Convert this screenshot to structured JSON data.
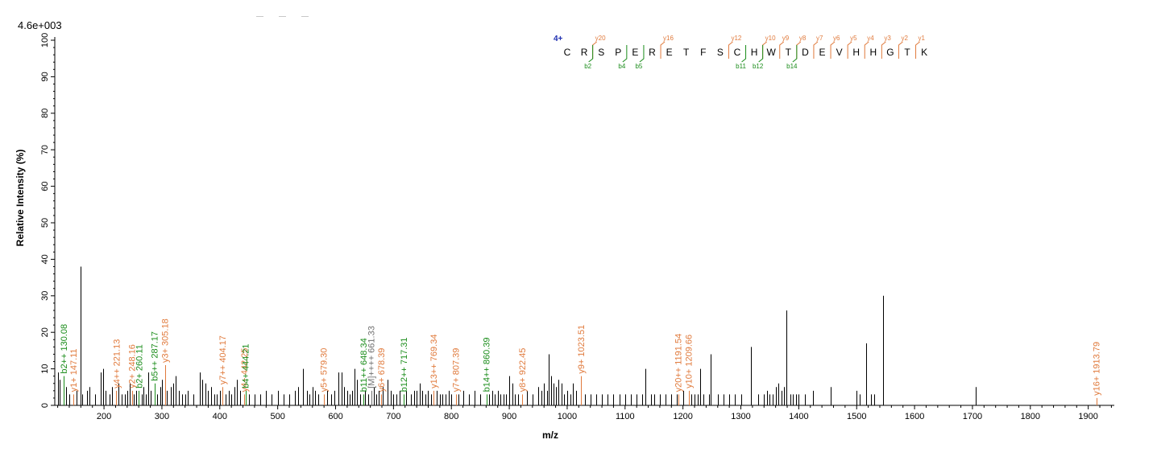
{
  "chart_data": {
    "type": "bar",
    "scale_label": "4.6e+003",
    "xlabel": "m/z",
    "ylabel": "Relative  Intensity (%)",
    "xlim": [
      115,
      1945
    ],
    "ylim": [
      0,
      100
    ],
    "x_ticks": [
      200,
      300,
      400,
      500,
      600,
      700,
      800,
      900,
      1000,
      1100,
      1200,
      1300,
      1400,
      1500,
      1600,
      1700,
      1800,
      1900
    ],
    "y_ticks": [
      0,
      10,
      20,
      30,
      40,
      50,
      60,
      70,
      80,
      90,
      100
    ],
    "colors": {
      "y_ion": "#e07a3c",
      "b_ion": "#1a8c1a",
      "precursor": "#707070",
      "peak": "#000000",
      "charge": "#1f2fb0"
    },
    "peaks": [
      [
        120,
        9
      ],
      [
        124,
        7
      ],
      [
        130.08,
        8
      ],
      [
        135,
        5
      ],
      [
        140,
        3
      ],
      [
        147.11,
        3
      ],
      [
        152,
        4
      ],
      [
        159,
        38
      ],
      [
        163,
        3
      ],
      [
        170,
        4
      ],
      [
        175,
        5
      ],
      [
        185,
        3
      ],
      [
        195,
        9
      ],
      [
        199,
        10
      ],
      [
        203,
        4
      ],
      [
        210,
        3
      ],
      [
        214,
        5
      ],
      [
        221.13,
        4
      ],
      [
        225,
        6
      ],
      [
        230,
        3
      ],
      [
        236,
        3
      ],
      [
        240,
        4
      ],
      [
        244,
        6
      ],
      [
        248.16,
        4
      ],
      [
        252,
        3
      ],
      [
        256,
        4
      ],
      [
        260.11,
        4
      ],
      [
        265,
        3
      ],
      [
        268,
        5
      ],
      [
        272,
        3
      ],
      [
        276,
        9
      ],
      [
        280,
        4
      ],
      [
        287.17,
        6
      ],
      [
        292,
        3
      ],
      [
        297,
        5
      ],
      [
        300,
        7
      ],
      [
        305.18,
        11
      ],
      [
        309,
        4
      ],
      [
        315,
        5
      ],
      [
        320,
        6
      ],
      [
        324,
        8
      ],
      [
        330,
        4
      ],
      [
        335,
        3
      ],
      [
        340,
        3
      ],
      [
        345,
        4
      ],
      [
        355,
        3
      ],
      [
        365,
        9
      ],
      [
        370,
        7
      ],
      [
        375,
        6
      ],
      [
        380,
        4
      ],
      [
        385,
        5
      ],
      [
        390,
        3
      ],
      [
        395,
        3
      ],
      [
        400,
        4
      ],
      [
        404.17,
        5
      ],
      [
        410,
        3
      ],
      [
        415,
        4
      ],
      [
        420,
        3
      ],
      [
        425,
        5
      ],
      [
        430,
        7
      ],
      [
        435,
        4
      ],
      [
        442.25,
        3
      ],
      [
        444.21,
        4
      ],
      [
        450,
        3
      ],
      [
        460,
        3
      ],
      [
        470,
        3
      ],
      [
        480,
        4
      ],
      [
        490,
        3
      ],
      [
        500,
        4
      ],
      [
        510,
        3
      ],
      [
        520,
        3
      ],
      [
        530,
        4
      ],
      [
        535,
        5
      ],
      [
        544,
        10
      ],
      [
        550,
        4
      ],
      [
        555,
        3
      ],
      [
        560,
        5
      ],
      [
        565,
        4
      ],
      [
        570,
        3
      ],
      [
        579.3,
        3
      ],
      [
        585,
        4
      ],
      [
        592,
        3
      ],
      [
        598,
        4
      ],
      [
        605,
        9
      ],
      [
        610,
        9
      ],
      [
        615,
        5
      ],
      [
        620,
        4
      ],
      [
        625,
        3
      ],
      [
        628,
        4
      ],
      [
        632,
        10
      ],
      [
        637,
        7
      ],
      [
        642,
        3
      ],
      [
        648.34,
        3
      ],
      [
        651,
        4
      ],
      [
        656,
        3
      ],
      [
        661.33,
        4
      ],
      [
        666,
        5
      ],
      [
        670,
        3
      ],
      [
        675,
        4
      ],
      [
        678.39,
        3
      ],
      [
        682,
        5
      ],
      [
        690,
        7
      ],
      [
        695,
        4
      ],
      [
        700,
        3
      ],
      [
        705,
        3
      ],
      [
        710,
        4
      ],
      [
        717.31,
        3
      ],
      [
        722,
        4
      ],
      [
        730,
        3
      ],
      [
        736,
        4
      ],
      [
        740,
        4
      ],
      [
        745,
        6
      ],
      [
        750,
        4
      ],
      [
        755,
        3
      ],
      [
        760,
        4
      ],
      [
        765,
        3
      ],
      [
        769.34,
        4
      ],
      [
        775,
        4
      ],
      [
        780,
        3
      ],
      [
        785,
        3
      ],
      [
        790,
        3
      ],
      [
        795,
        4
      ],
      [
        800,
        3
      ],
      [
        807.39,
        3
      ],
      [
        812,
        3
      ],
      [
        820,
        4
      ],
      [
        830,
        3
      ],
      [
        840,
        4
      ],
      [
        850,
        3
      ],
      [
        860.39,
        3
      ],
      [
        865,
        3
      ],
      [
        870,
        4
      ],
      [
        875,
        3
      ],
      [
        880,
        4
      ],
      [
        885,
        3
      ],
      [
        890,
        3
      ],
      [
        895,
        3
      ],
      [
        900,
        8
      ],
      [
        905,
        6
      ],
      [
        910,
        3
      ],
      [
        915,
        3
      ],
      [
        922.45,
        3
      ],
      [
        930,
        4
      ],
      [
        940,
        3
      ],
      [
        950,
        5
      ],
      [
        955,
        4
      ],
      [
        960,
        6
      ],
      [
        965,
        4
      ],
      [
        968,
        14
      ],
      [
        972,
        8
      ],
      [
        976,
        6
      ],
      [
        980,
        5
      ],
      [
        985,
        7
      ],
      [
        990,
        6
      ],
      [
        995,
        3
      ],
      [
        1000,
        4
      ],
      [
        1005,
        3
      ],
      [
        1010,
        6
      ],
      [
        1015,
        4
      ],
      [
        1023.51,
        8
      ],
      [
        1030,
        3
      ],
      [
        1040,
        3
      ],
      [
        1050,
        3
      ],
      [
        1060,
        3
      ],
      [
        1070,
        3
      ],
      [
        1080,
        3
      ],
      [
        1090,
        3
      ],
      [
        1100,
        3
      ],
      [
        1110,
        3
      ],
      [
        1120,
        3
      ],
      [
        1130,
        3
      ],
      [
        1135,
        10
      ],
      [
        1145,
        3
      ],
      [
        1150,
        3
      ],
      [
        1160,
        3
      ],
      [
        1170,
        3
      ],
      [
        1180,
        3
      ],
      [
        1190,
        3
      ],
      [
        1191.54,
        3
      ],
      [
        1200,
        4
      ],
      [
        1209.66,
        4
      ],
      [
        1215,
        3
      ],
      [
        1220,
        3
      ],
      [
        1225,
        3
      ],
      [
        1230,
        10
      ],
      [
        1235,
        3
      ],
      [
        1245,
        3
      ],
      [
        1248,
        14
      ],
      [
        1260,
        3
      ],
      [
        1270,
        3
      ],
      [
        1280,
        3
      ],
      [
        1290,
        3
      ],
      [
        1300,
        3
      ],
      [
        1317,
        16
      ],
      [
        1330,
        3
      ],
      [
        1340,
        3
      ],
      [
        1345,
        4
      ],
      [
        1350,
        3
      ],
      [
        1355,
        3
      ],
      [
        1360,
        5
      ],
      [
        1365,
        6
      ],
      [
        1370,
        4
      ],
      [
        1375,
        5
      ],
      [
        1378,
        26
      ],
      [
        1385,
        3
      ],
      [
        1390,
        3
      ],
      [
        1395,
        3
      ],
      [
        1400,
        3
      ],
      [
        1410,
        3
      ],
      [
        1425,
        4
      ],
      [
        1455,
        5
      ],
      [
        1500,
        4
      ],
      [
        1505,
        3
      ],
      [
        1517,
        17
      ],
      [
        1525,
        3
      ],
      [
        1530,
        3
      ],
      [
        1545,
        30
      ],
      [
        1705,
        5
      ],
      [
        1913.79,
        2
      ]
    ],
    "annotations": [
      {
        "mz": 130.08,
        "intensity": 8,
        "label": "b2++ 130.08",
        "type": "b"
      },
      {
        "mz": 147.11,
        "intensity": 3,
        "label": "y1+ 147.11",
        "type": "y"
      },
      {
        "mz": 221.13,
        "intensity": 4,
        "label": "y4++ 221.13",
        "type": "y"
      },
      {
        "mz": 248.16,
        "intensity": 4,
        "label": "y2+ 248.16",
        "type": "y"
      },
      {
        "mz": 260.11,
        "intensity": 4,
        "label": "b2+ 260.11",
        "type": "b"
      },
      {
        "mz": 287.17,
        "intensity": 6,
        "label": "b5++ 287.17",
        "type": "b"
      },
      {
        "mz": 305.18,
        "intensity": 11,
        "label": "y3+ 305.18",
        "type": "y"
      },
      {
        "mz": 404.17,
        "intensity": 5,
        "label": "y7++ 404.17",
        "type": "y"
      },
      {
        "mz": 442.25,
        "intensity": 3,
        "label": "y4+ 442.25",
        "type": "y"
      },
      {
        "mz": 444.21,
        "intensity": 4,
        "label": "b4+ 444.21",
        "type": "b"
      },
      {
        "mz": 579.3,
        "intensity": 3,
        "label": "y5+ 579.30",
        "type": "y"
      },
      {
        "mz": 648.34,
        "intensity": 3,
        "label": "b11++ 648.34",
        "type": "b"
      },
      {
        "mz": 661.33,
        "intensity": 4,
        "label": "[M]++++ 661.33",
        "type": "m"
      },
      {
        "mz": 678.39,
        "intensity": 3,
        "label": "y6+ 678.39",
        "type": "y"
      },
      {
        "mz": 717.31,
        "intensity": 3,
        "label": "b12++ 717.31",
        "type": "b"
      },
      {
        "mz": 769.34,
        "intensity": 4,
        "label": "y13++ 769.34",
        "type": "y"
      },
      {
        "mz": 807.39,
        "intensity": 3,
        "label": "y7+ 807.39",
        "type": "y"
      },
      {
        "mz": 860.39,
        "intensity": 3,
        "label": "b14++ 860.39",
        "type": "b"
      },
      {
        "mz": 922.45,
        "intensity": 3,
        "label": "y8+ 922.45",
        "type": "y"
      },
      {
        "mz": 1023.51,
        "intensity": 8,
        "label": "y9+ 1023.51",
        "type": "y"
      },
      {
        "mz": 1191.54,
        "intensity": 3,
        "label": "y20++ 1191.54",
        "type": "y"
      },
      {
        "mz": 1209.66,
        "intensity": 4,
        "label": "y10+ 1209.66",
        "type": "y"
      },
      {
        "mz": 1913.79,
        "intensity": 2,
        "label": "y16+ 1913.79",
        "type": "y"
      }
    ],
    "peptide": {
      "charge": "4+",
      "sequence": [
        "C",
        "R",
        "S",
        "P",
        "E",
        "R",
        "E",
        "T",
        "F",
        "S",
        "C",
        "H",
        "W",
        "T",
        "D",
        "E",
        "V",
        "H",
        "H",
        "G",
        "T",
        "K"
      ],
      "y_labels": [
        {
          "after": 2,
          "label": "y20"
        },
        {
          "after": 6,
          "label": "y16"
        },
        {
          "after": 10,
          "label": "y12"
        },
        {
          "after": 12,
          "label": "y10"
        },
        {
          "after": 13,
          "label": "y9"
        },
        {
          "after": 14,
          "label": "y8"
        },
        {
          "after": 15,
          "label": "y7"
        },
        {
          "after": 16,
          "label": "y6"
        },
        {
          "after": 17,
          "label": "y5"
        },
        {
          "after": 18,
          "label": "y4"
        },
        {
          "after": 19,
          "label": "y3"
        },
        {
          "after": 20,
          "label": "y2"
        },
        {
          "after": 21,
          "label": "y1"
        }
      ],
      "b_labels": [
        {
          "after": 2,
          "label": "b2"
        },
        {
          "after": 4,
          "label": "b4"
        },
        {
          "after": 5,
          "label": "b5"
        },
        {
          "after": 11,
          "label": "b11"
        },
        {
          "after": 12,
          "label": "b12"
        },
        {
          "after": 14,
          "label": "b14"
        }
      ]
    }
  }
}
